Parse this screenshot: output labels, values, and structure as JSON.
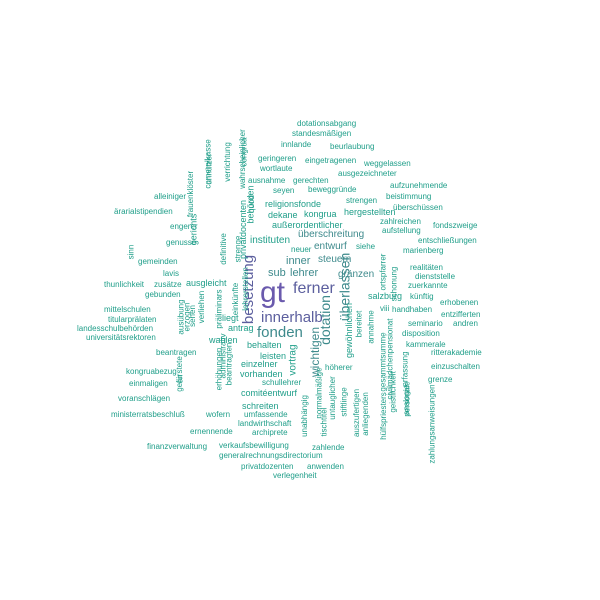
{
  "colors": {
    "small": "#1f9e89",
    "medium": "#3e8a8c",
    "large": "#5c5f9e",
    "largest": "#6a5aad"
  },
  "words": [
    {
      "text": "gt",
      "weight": 5
    },
    {
      "text": "ferner",
      "weight": 3
    },
    {
      "text": "innerhalb",
      "weight": 3
    },
    {
      "text": "besetzung",
      "weight": 3
    },
    {
      "text": "fonden",
      "weight": 3
    },
    {
      "text": "dotation",
      "weight": 3
    },
    {
      "text": "überlassen",
      "weight": 3
    },
    {
      "text": "wichtigen",
      "weight": 2
    },
    {
      "text": "sub",
      "weight": 2
    },
    {
      "text": "lehrer",
      "weight": 2
    },
    {
      "text": "inner",
      "weight": 2
    },
    {
      "text": "steuern",
      "weight": 2
    },
    {
      "text": "entwurf",
      "weight": 2
    },
    {
      "text": "gränzen",
      "weight": 2
    },
    {
      "text": "überschreitung",
      "weight": 2
    },
    {
      "text": "vortrag",
      "weight": 2
    },
    {
      "text": "instituten",
      "weight": 2
    },
    {
      "text": "gewöhnlichen",
      "weight": 1
    },
    {
      "text": "dotationsabgang",
      "weight": 1
    },
    {
      "text": "standesmäßigen",
      "weight": 1
    },
    {
      "text": "innlande",
      "weight": 1
    },
    {
      "text": "beurlaubung",
      "weight": 1
    },
    {
      "text": "geringeren",
      "weight": 1
    },
    {
      "text": "eingetragenen",
      "weight": 1
    },
    {
      "text": "weggelassen",
      "weight": 1
    },
    {
      "text": "wortlaute",
      "weight": 1
    },
    {
      "text": "ausgezeichneter",
      "weight": 1
    },
    {
      "text": "ausnahme",
      "weight": 1
    },
    {
      "text": "gerechten",
      "weight": 1
    },
    {
      "text": "aufzunehmende",
      "weight": 1
    },
    {
      "text": "seyen",
      "weight": 1
    },
    {
      "text": "beweggründe",
      "weight": 1
    },
    {
      "text": "beistimmung",
      "weight": 1
    },
    {
      "text": "strengen",
      "weight": 1
    },
    {
      "text": "übersc­hüssen",
      "weight": 1
    },
    {
      "text": "religionsfonde",
      "weight": 1
    },
    {
      "text": "hergestellten",
      "weight": 1
    },
    {
      "text": "dekane",
      "weight": 1
    },
    {
      "text": "kongrua",
      "weight": 1
    },
    {
      "text": "zahlreichen",
      "weight": 1
    },
    {
      "text": "fondszweige",
      "weight": 1
    },
    {
      "text": "außerordentlicher",
      "weight": 1
    },
    {
      "text": "aufstellung",
      "weight": 1
    },
    {
      "text": "entschließungen",
      "weight": 1
    },
    {
      "text": "neuer",
      "weight": 1
    },
    {
      "text": "siehe",
      "weight": 1
    },
    {
      "text": "marienberg",
      "weight": 1
    },
    {
      "text": "realitäten",
      "weight": 1
    },
    {
      "text": "dienststelle",
      "weight": 1
    },
    {
      "text": "zuerkannte",
      "weight": 1
    },
    {
      "text": "alleiniger",
      "weight": 1
    },
    {
      "text": "ärarialstipendien",
      "weight": 1
    },
    {
      "text": "engerer",
      "weight": 1
    },
    {
      "text": "genusse",
      "weight": 1
    },
    {
      "text": "gemeinden",
      "weight": 1
    },
    {
      "text": "lavis",
      "weight": 1
    },
    {
      "text": "thunlichkeit",
      "weight": 1
    },
    {
      "text": "zusätze",
      "weight": 1
    },
    {
      "text": "ausgleicht",
      "weight": 1
    },
    {
      "text": "gebunden",
      "weight": 1
    },
    {
      "text": "mittelschulen",
      "weight": 1
    },
    {
      "text": "titularprälaten",
      "weight": 1
    },
    {
      "text": "landesschulbehörden",
      "weight": 1
    },
    {
      "text": "universitätsrektoren",
      "weight": 1
    },
    {
      "text": "liegt",
      "weight": 1
    },
    {
      "text": "antrag",
      "weight": 1
    },
    {
      "text": "wahlen",
      "weight": 1
    },
    {
      "text": "behalten",
      "weight": 1
    },
    {
      "text": "leisten",
      "weight": 1
    },
    {
      "text": "salzburg",
      "weight": 1
    },
    {
      "text": "künftig",
      "weight": 1
    },
    {
      "text": "erhobenen",
      "weight": 1
    },
    {
      "text": "viii",
      "weight": 1
    },
    {
      "text": "handhaben",
      "weight": 1
    },
    {
      "text": "entzifferten",
      "weight": 1
    },
    {
      "text": "seminario",
      "weight": 1
    },
    {
      "text": "andren",
      "weight": 1
    },
    {
      "text": "disposition",
      "weight": 1
    },
    {
      "text": "kammerale",
      "weight": 1
    },
    {
      "text": "ritterakademie",
      "weight": 1
    },
    {
      "text": "beantragen",
      "weight": 1
    },
    {
      "text": "einzuschalten",
      "weight": 1
    },
    {
      "text": "grenze",
      "weight": 1
    },
    {
      "text": "kongruabezug",
      "weight": 1
    },
    {
      "text": "einmaligen",
      "weight": 1
    },
    {
      "text": "voranschlägen",
      "weight": 1
    },
    {
      "text": "ministerratsbeschluß",
      "weight": 1
    },
    {
      "text": "wofern",
      "weight": 1
    },
    {
      "text": "einzelner",
      "weight": 1
    },
    {
      "text": "vorhanden",
      "weight": 1
    },
    {
      "text": "höherer",
      "weight": 1
    },
    {
      "text": "schullehrer",
      "weight": 1
    },
    {
      "text": "comitéentwurf",
      "weight": 1
    },
    {
      "text": "schreiten",
      "weight": 1
    },
    {
      "text": "umfassende",
      "weight": 1
    },
    {
      "text": "landwirthschaft",
      "weight": 1
    },
    {
      "text": "archiprete",
      "weight": 1
    },
    {
      "text": "ernennende",
      "weight": 1
    },
    {
      "text": "finanzverwaltung",
      "weight": 1
    },
    {
      "text": "verkaufsbewilligung",
      "weight": 1
    },
    {
      "text": "generalrechnungsdirectorium",
      "weight": 1
    },
    {
      "text": "zahlende",
      "weight": 1
    },
    {
      "text": "privatdozenten",
      "weight": 1
    },
    {
      "text": "anwenden",
      "weight": 1
    },
    {
      "text": "verlegenheit",
      "weight": 1
    },
    {
      "text": "normalmäßige",
      "weight": 1
    },
    {
      "text": "unabhängig",
      "weight": 1
    },
    {
      "text": "untauglicher",
      "weight": 1
    },
    {
      "text": "stiftlinge",
      "weight": 1
    },
    {
      "text": "auszufertigen",
      "weight": 1
    },
    {
      "text": "tischtitel",
      "weight": 1
    },
    {
      "text": "gesammtsumme",
      "weight": 1
    },
    {
      "text": "anliegenden",
      "weight": 1
    },
    {
      "text": "hülfspriesters",
      "weight": 1
    },
    {
      "text": "geistlichkeit",
      "weight": 1
    },
    {
      "text": "annahme",
      "weight": 1
    },
    {
      "text": "bereitet",
      "weight": 1
    },
    {
      "text": "civilmädchenpensionat",
      "weight": 1
    },
    {
      "text": "erfassung",
      "weight": 1
    },
    {
      "text": "analogie",
      "weight": 1
    },
    {
      "text": "zahlungsanweisungen",
      "weight": 1
    },
    {
      "text": "personale",
      "weight": 1
    },
    {
      "text": "ortspfarrer",
      "weight": 1
    },
    {
      "text": "schonung",
      "weight": 1
    },
    {
      "text": "cameralkasse",
      "weight": 1
    },
    {
      "text": "frauenklöster",
      "weight": 1
    },
    {
      "text": "unnützer",
      "weight": 1
    },
    {
      "text": "wahrscheinlicher",
      "weight": 1
    },
    {
      "text": "verrichtung",
      "weight": 1
    },
    {
      "text": "congrua",
      "weight": 1
    },
    {
      "text": "quod",
      "weight": 1
    },
    {
      "text": "behörden",
      "weight": 1
    },
    {
      "text": "privatdocenten",
      "weight": 1
    },
    {
      "text": "gerichts",
      "weight": 1
    },
    {
      "text": "definitive",
      "weight": 1
    },
    {
      "text": "strenge",
      "weight": 1
    },
    {
      "text": "lehrerstellen",
      "weight": 1
    },
    {
      "text": "sinn",
      "weight": 1
    },
    {
      "text": "einkünfte",
      "weight": 1
    },
    {
      "text": "präliminars",
      "weight": 1
    },
    {
      "text": "verliehen",
      "weight": 1
    },
    {
      "text": "ausübung",
      "weight": 1
    },
    {
      "text": "erzogen",
      "weight": 1
    },
    {
      "text": "sehen",
      "weight": 1
    },
    {
      "text": "administrativ",
      "weight": 1
    },
    {
      "text": "erhöhungen",
      "weight": 1
    },
    {
      "text": "beantragten",
      "weight": 1
    },
    {
      "text": "gefürstete",
      "weight": 1
    },
    {
      "text": "en",
      "weight": 1
    }
  ]
}
